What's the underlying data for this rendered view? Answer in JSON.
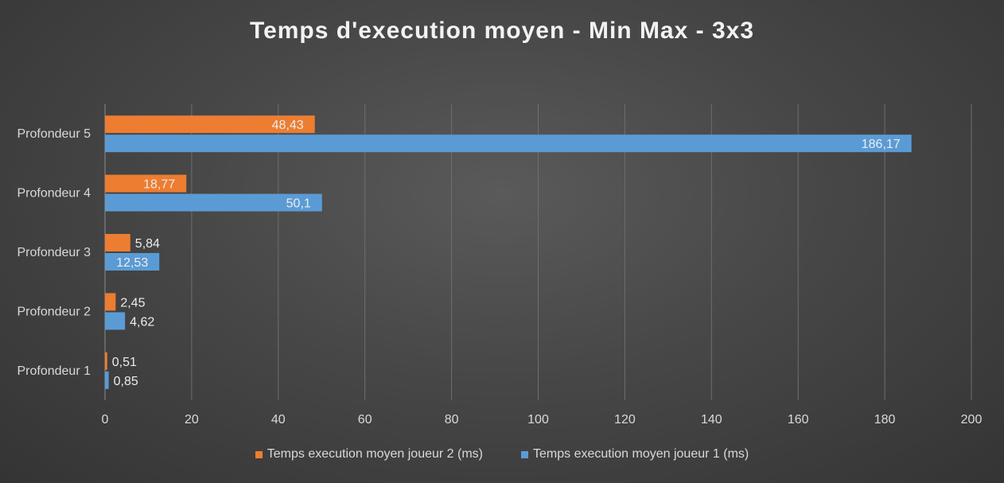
{
  "chart_data": {
    "type": "bar",
    "orientation": "horizontal",
    "title": "Temps d'execution moyen - Min Max - 3x3",
    "categories": [
      "Profondeur 1",
      "Profondeur 2",
      "Profondeur 3",
      "Profondeur 4",
      "Profondeur 5"
    ],
    "series": [
      {
        "name": "Temps execution moyen joueur 2 (ms)",
        "color": "#ed7d31",
        "values": [
          0.51,
          2.45,
          5.84,
          18.77,
          48.43
        ],
        "labels": [
          "0,51",
          "2,45",
          "5,84",
          "18,77",
          "48,43"
        ]
      },
      {
        "name": "Temps execution moyen joueur 1 (ms)",
        "color": "#5b9bd5",
        "values": [
          0.85,
          4.62,
          12.53,
          50.1,
          186.17
        ],
        "labels": [
          "0,85",
          "4,62",
          "12,53",
          "50,1",
          "186,17"
        ]
      }
    ],
    "xlim": [
      0,
      200
    ],
    "xticks": [
      0,
      20,
      40,
      60,
      80,
      100,
      120,
      140,
      160,
      180,
      200
    ],
    "grid": true,
    "legend_position": "bottom"
  }
}
